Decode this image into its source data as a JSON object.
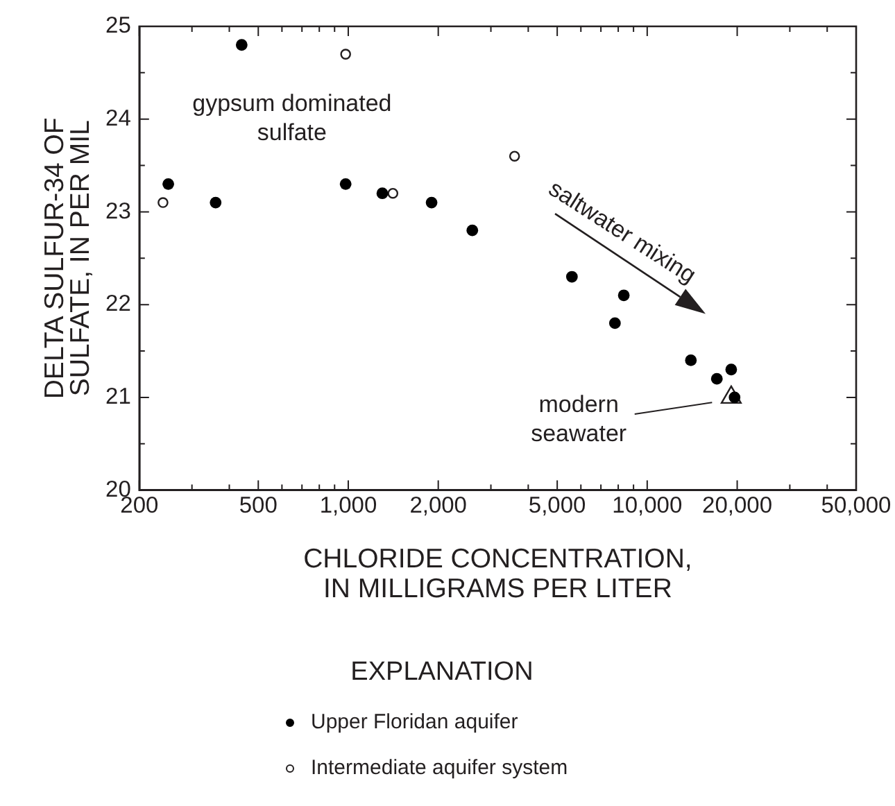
{
  "chart_data": {
    "type": "scatter",
    "xlabel": "CHLORIDE CONCENTRATION,\nIN MILLIGRAMS PER LITER",
    "ylabel": "DELTA SULFUR-34 OF\nSULFATE, IN PER MIL",
    "legend_title": "EXPLANATION",
    "legend": "bottom",
    "log": "x",
    "xlim": [
      200,
      50000
    ],
    "ylim": [
      20,
      25
    ],
    "xticks": [
      200,
      {
        "value": 300,
        "label": null
      },
      {
        "value": 400,
        "label": null
      },
      500,
      {
        "value": 600,
        "label": null
      },
      {
        "value": 700,
        "label": null
      },
      {
        "value": 800,
        "label": null
      },
      {
        "value": 900,
        "label": null
      },
      {
        "value": 1000,
        "label": "1,000"
      },
      {
        "value": 2000,
        "label": "2,000"
      },
      {
        "value": 3000,
        "label": null
      },
      {
        "value": 4000,
        "label": null
      },
      {
        "value": 5000,
        "label": "5,000"
      },
      {
        "value": 6000,
        "label": null
      },
      {
        "value": 7000,
        "label": null
      },
      {
        "value": 8000,
        "label": null
      },
      {
        "value": 9000,
        "label": null
      },
      {
        "value": 10000,
        "label": "10,000"
      },
      {
        "value": 20000,
        "label": "20,000"
      },
      {
        "value": 30000,
        "label": null
      },
      {
        "value": 40000,
        "label": null
      },
      {
        "value": 50000,
        "label": "50,000"
      }
    ],
    "yticks": [
      20,
      {
        "value": 20.5,
        "label": null
      },
      21,
      {
        "value": 21.5,
        "label": null
      },
      22,
      {
        "value": 22.5,
        "label": null
      },
      23,
      {
        "value": 23.5,
        "label": null
      },
      24,
      {
        "value": 24.5,
        "label": null
      },
      25
    ],
    "series": [
      {
        "name": "Upper Floridan aquifer",
        "color": "#000000",
        "marker": "circle",
        "x": [
          250,
          360,
          440,
          980,
          1300,
          1900,
          2600,
          5600,
          8350,
          7800,
          14000,
          17100,
          19100,
          19600
        ],
        "values": [
          23.3,
          23.1,
          24.8,
          23.3,
          23.2,
          23.1,
          22.8,
          22.3,
          22.1,
          21.8,
          21.4,
          21.2,
          21.3,
          21.0
        ]
      },
      {
        "name": "Intermediate aquifer system",
        "color": "#ffffff",
        "marker": "circle",
        "x": [
          240,
          980,
          1410,
          3600
        ],
        "values": [
          23.1,
          24.7,
          23.2,
          23.6
        ]
      },
      {
        "color": "#ffffff",
        "marker": "triangle",
        "x": [
          19100
        ],
        "values": [
          21.0
        ]
      }
    ],
    "annotations": [
      "gypsum dominated\nsulfate",
      "saltwater mixing",
      "modern\nseawater"
    ]
  }
}
